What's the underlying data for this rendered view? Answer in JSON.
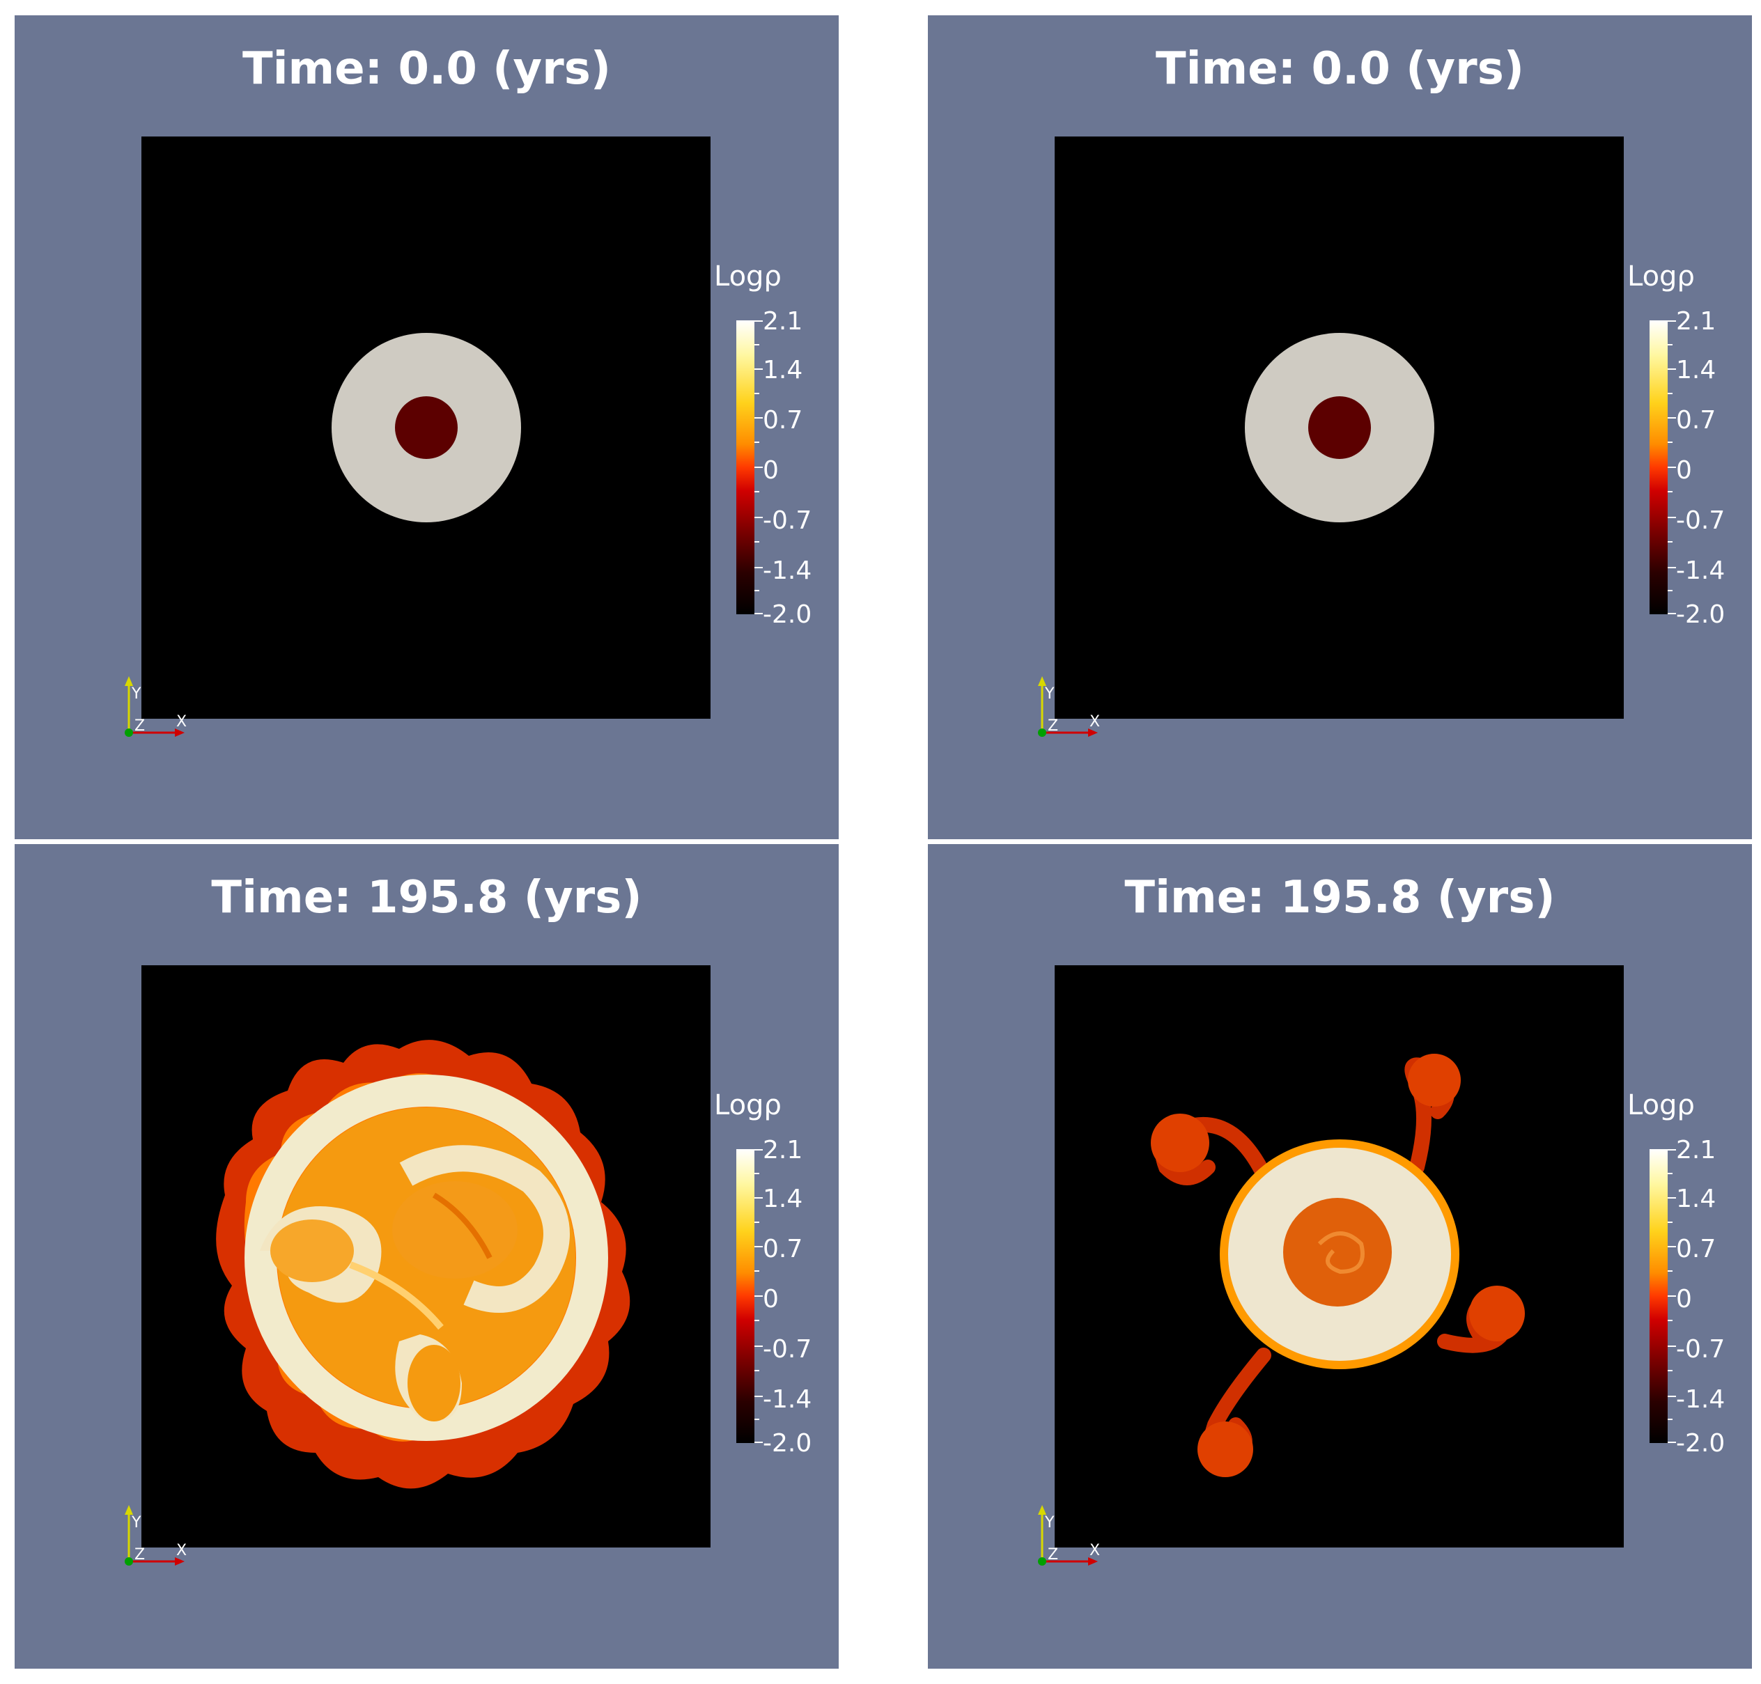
{
  "colorbar_title": "Logρ",
  "colorbar_ticks": [
    "2.1",
    "1.4",
    "0.7",
    "0",
    "-0.7",
    "-1.4",
    "-2.0"
  ],
  "axis_labels": {
    "x": "X",
    "y": "Y",
    "z": "Z"
  },
  "colors": {
    "panel_bg": "#6b7693",
    "view_bg": "#000000",
    "divider": "#ffffff"
  },
  "panels": [
    {
      "title": "Time: 0.0 (yrs)"
    },
    {
      "title": "Time: 0.0 (yrs)"
    },
    {
      "title": "Time: 195.8 (yrs)"
    },
    {
      "title": "Time: 195.8 (yrs)"
    }
  ]
}
